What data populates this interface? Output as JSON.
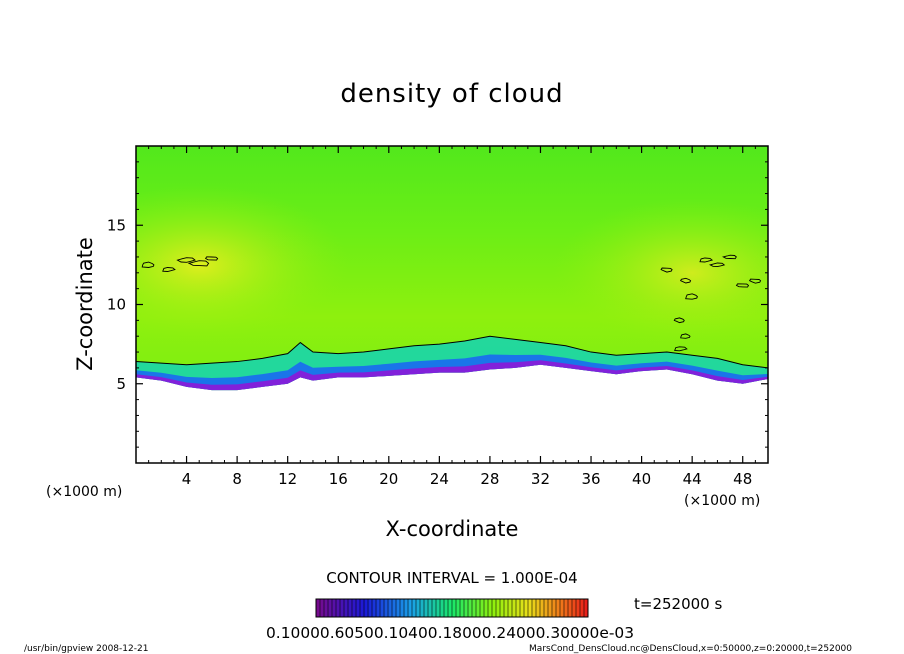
{
  "chart_data": {
    "type": "heatmap",
    "title": "density of cloud",
    "xlabel": "X-coordinate",
    "ylabel": "Z-coordinate",
    "xunit_left": "(×1000 m)",
    "xunit_right": "(×1000 m)",
    "xlim": [
      0,
      50
    ],
    "ylim": [
      0,
      20
    ],
    "xticks": [
      4,
      8,
      12,
      16,
      20,
      24,
      28,
      32,
      36,
      40,
      44,
      48
    ],
    "yticks": [
      5,
      10,
      15
    ],
    "contour_interval_text": "CONTOUR INTERVAL = 1.000E-04",
    "time_text": "t=252000 s",
    "colorbar_labels_text": "0.10000.60500.10400.18000.24000.30000e-03",
    "cloud_base_profile": {
      "x": [
        0,
        2,
        4,
        6,
        8,
        10,
        12,
        13,
        14,
        16,
        18,
        20,
        22,
        24,
        26,
        28,
        30,
        32,
        34,
        36,
        38,
        40,
        42,
        44,
        46,
        48,
        50
      ],
      "z_base": [
        5.4,
        5.2,
        4.8,
        4.6,
        4.6,
        4.8,
        5.0,
        5.4,
        5.2,
        5.4,
        5.4,
        5.5,
        5.6,
        5.7,
        5.7,
        5.9,
        6.0,
        6.2,
        6.0,
        5.8,
        5.6,
        5.8,
        5.9,
        5.6,
        5.2,
        5.0,
        5.3
      ],
      "z_contour": [
        6.4,
        6.3,
        6.2,
        6.3,
        6.4,
        6.6,
        6.9,
        7.6,
        7.0,
        6.9,
        7.0,
        7.2,
        7.4,
        7.5,
        7.7,
        8.0,
        7.8,
        7.6,
        7.4,
        7.0,
        6.8,
        6.9,
        7.0,
        6.8,
        6.6,
        6.2,
        6.0
      ]
    },
    "colors": {
      "fill_top": "#56ea1a",
      "fill_mid": "#8ef00e",
      "fill_high": "#ccec1e",
      "fill_edge1": "#1ad6a8",
      "fill_edge2": "#1a6cf0",
      "fill_edge3": "#8a1ad8",
      "contour": "#000000"
    }
  },
  "footer": {
    "left": "/usr/bin/gpview   2008-12-21",
    "right": "MarsCond_DensCloud.nc@DensCloud,x=0:50000,z=0:20000,t=252000"
  }
}
